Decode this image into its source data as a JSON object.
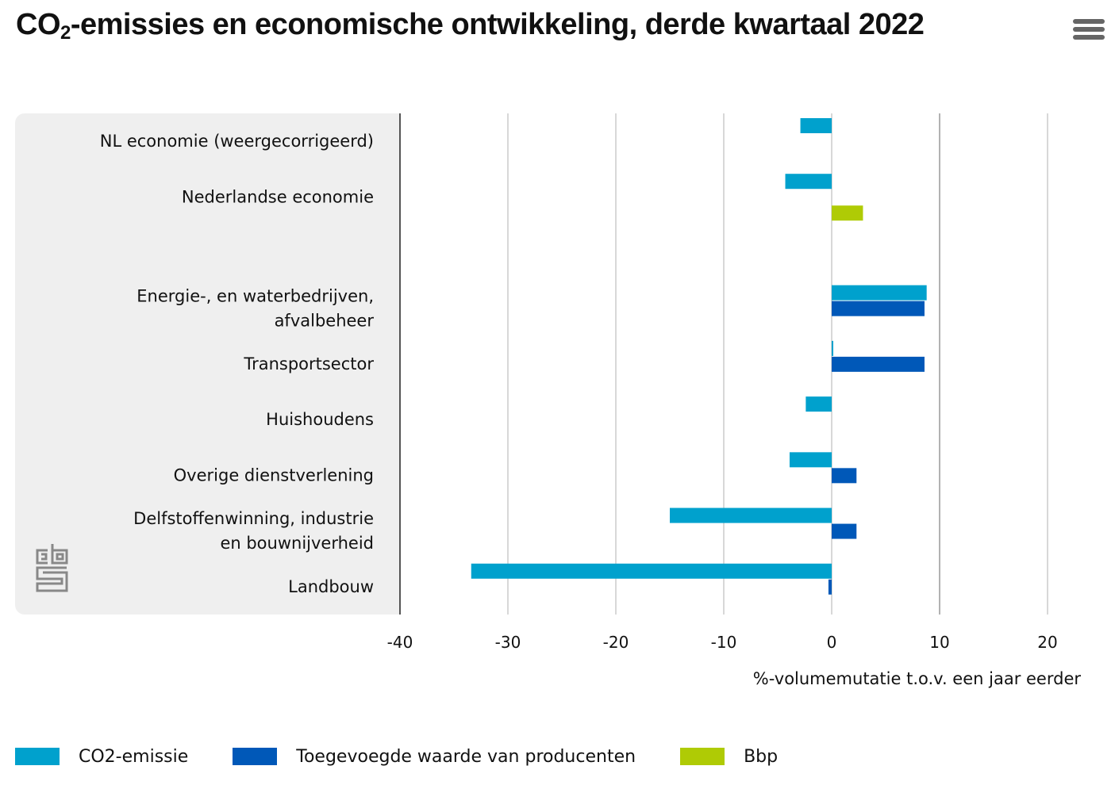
{
  "header": {
    "title_main": "CO",
    "title_sub": "2",
    "title_rest": "-emissies en economische ontwikkeling, derde kwartaal 2022",
    "menu_icon": "hamburger-menu-icon"
  },
  "logo": {
    "name": "cbs-logo",
    "text": "cbs"
  },
  "colors": {
    "co2": "#00a1cd",
    "toegevoegde_waarde": "#0058b8",
    "bbp": "#afcb05",
    "panel": "#efefef",
    "grid": "#cccccc",
    "axis": "#666666"
  },
  "legend": [
    {
      "key": "co2",
      "label": "CO2-emissie"
    },
    {
      "key": "toegevoegde_waarde",
      "label": "Toegevoegde waarde van producenten"
    },
    {
      "key": "bbp",
      "label": "Bbp"
    }
  ],
  "chart_data": {
    "type": "bar",
    "orientation": "horizontal",
    "title": "CO2-emissies en economische ontwikkeling, derde kwartaal 2022",
    "xlabel": "%-volumemutatie t.o.v. een jaar eerder",
    "ylabel": "",
    "xlim": [
      -40,
      25
    ],
    "xticks": [
      -40,
      -30,
      -20,
      -10,
      0,
      10,
      20
    ],
    "xtick_labels": [
      "-40",
      "-30",
      "-20",
      "-10",
      "0",
      "10",
      "20"
    ],
    "grid": true,
    "legend_position": "bottom-left",
    "categories": [
      [
        "NL economie (weergecorrigeerd)"
      ],
      [
        "Nederlandse economie"
      ],
      [
        ""
      ],
      [
        "Energie-, en waterbedrijven,",
        "afvalbeheer"
      ],
      [
        "Transportsector"
      ],
      [
        "Huishoudens"
      ],
      [
        "Overige dienstverlening"
      ],
      [
        "Delfstoffenwinning, industrie",
        "en bouwnijverheid"
      ],
      [
        "Landbouw"
      ]
    ],
    "series": [
      {
        "name": "CO2-emissie",
        "key": "co2",
        "values": [
          -2.9,
          -4.3,
          null,
          8.8,
          0.1,
          -2.4,
          -3.9,
          -15.0,
          -33.4
        ]
      },
      {
        "name": "Toegevoegde waarde van producenten",
        "key": "toegevoegde_waarde",
        "values": [
          null,
          null,
          null,
          8.6,
          8.6,
          null,
          2.3,
          2.3,
          -0.3
        ]
      },
      {
        "name": "Bbp",
        "key": "bbp",
        "values": [
          null,
          2.9,
          null,
          null,
          null,
          null,
          null,
          null,
          null
        ]
      }
    ]
  }
}
